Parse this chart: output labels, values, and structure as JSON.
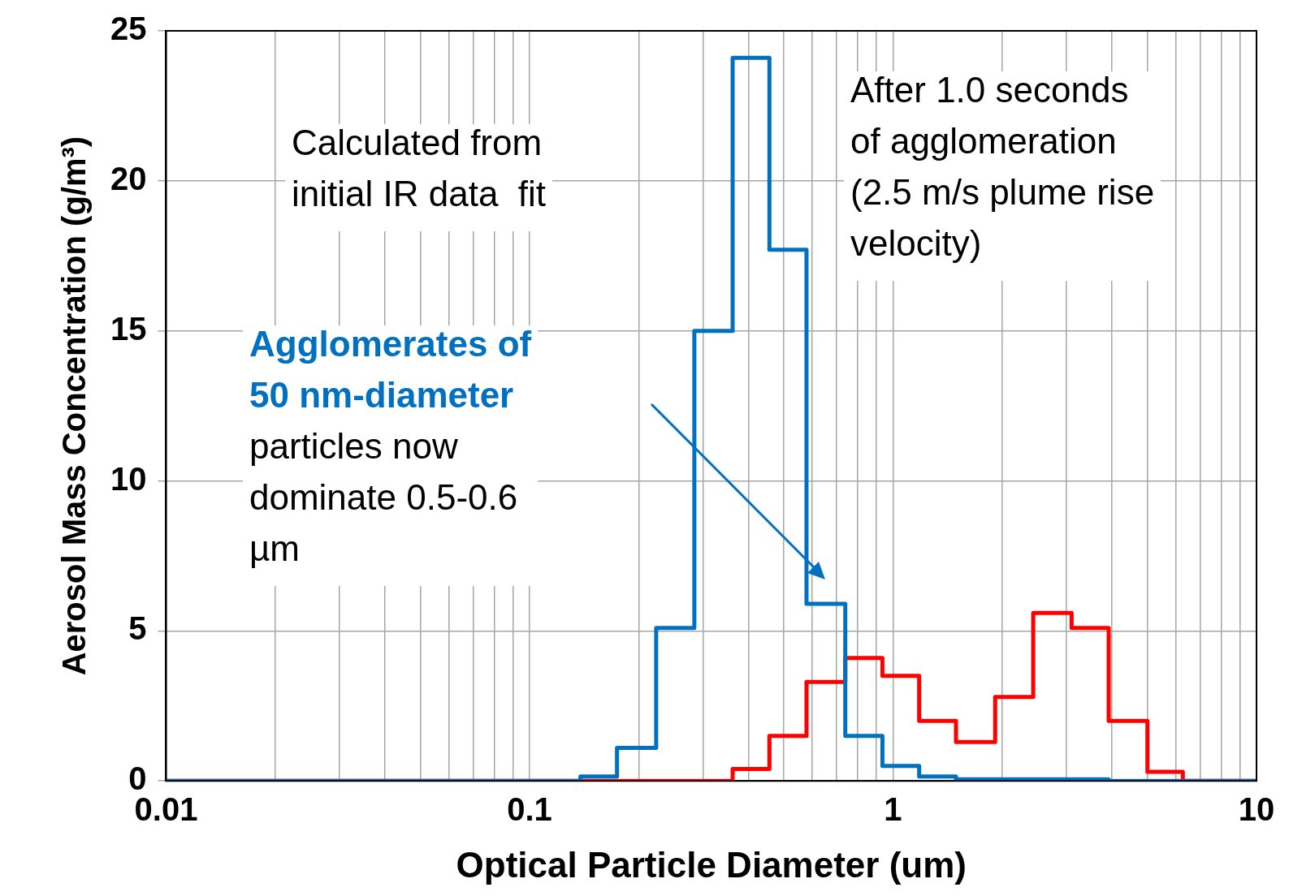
{
  "chart_data": {
    "type": "step",
    "xlabel": "Optical Particle Diameter (um)",
    "ylabel": "Aerosol Mass Concentration (g/m³)",
    "log": "x",
    "xlim": [
      0.01,
      10
    ],
    "ylim": [
      0,
      25
    ],
    "xticks": [
      0.01,
      {
        "value": 0.02,
        "label": null
      },
      {
        "value": 0.03,
        "label": null
      },
      {
        "value": 0.04,
        "label": null
      },
      {
        "value": 0.05,
        "label": null
      },
      {
        "value": 0.06,
        "label": null
      },
      {
        "value": 0.07,
        "label": null
      },
      {
        "value": 0.08,
        "label": null
      },
      {
        "value": 0.09,
        "label": null
      },
      0.1,
      {
        "value": 0.2,
        "label": null
      },
      {
        "value": 0.3,
        "label": null
      },
      {
        "value": 0.4,
        "label": null
      },
      {
        "value": 0.5,
        "label": null
      },
      {
        "value": 0.6,
        "label": null
      },
      {
        "value": 0.7,
        "label": null
      },
      {
        "value": 0.8,
        "label": null
      },
      {
        "value": 0.9,
        "label": null
      },
      1,
      {
        "value": 2,
        "label": null
      },
      {
        "value": 3,
        "label": null
      },
      {
        "value": 4,
        "label": null
      },
      {
        "value": 5,
        "label": null
      },
      {
        "value": 6,
        "label": null
      },
      {
        "value": 7,
        "label": null
      },
      {
        "value": 8,
        "label": null
      },
      {
        "value": 9,
        "label": null
      },
      10
    ],
    "yticks": [
      0,
      5,
      10,
      15,
      20,
      25
    ],
    "grid": true,
    "legend": false,
    "marker": "none",
    "line_style": "solid",
    "series": [
      {
        "color": "#0070c0",
        "x": [
          0.01,
          0.138,
          0.174,
          0.223,
          0.284,
          0.362,
          0.457,
          0.578,
          0.739,
          0.935,
          1.18,
          1.49,
          3.92,
          10
        ],
        "values": [
          0,
          0.15,
          1.1,
          5.1,
          15.0,
          24.1,
          17.7,
          5.9,
          1.5,
          0.5,
          0.15,
          0.05,
          0,
          0
        ]
      },
      {
        "color": "#ff0000",
        "x": [
          0.01,
          0.362,
          0.457,
          0.578,
          0.739,
          0.935,
          1.18,
          1.49,
          1.91,
          2.43,
          3.1,
          3.92,
          5.01,
          6.27,
          10
        ],
        "values": [
          0,
          0.4,
          1.5,
          3.3,
          4.1,
          3.5,
          2.0,
          1.3,
          2.8,
          5.6,
          5.1,
          2.0,
          0.3,
          0,
          0
        ]
      }
    ],
    "annotations": [
      "Calculated from\ninitial IR data  fit",
      "After 1.0 seconds\nof agglomeration\n(2.5 m/s plume rise\nvelocity)",
      "Agglomerates of\n50 nm-diameter\nparticles now\ndominate 0.5-0.6\nµm"
    ]
  }
}
